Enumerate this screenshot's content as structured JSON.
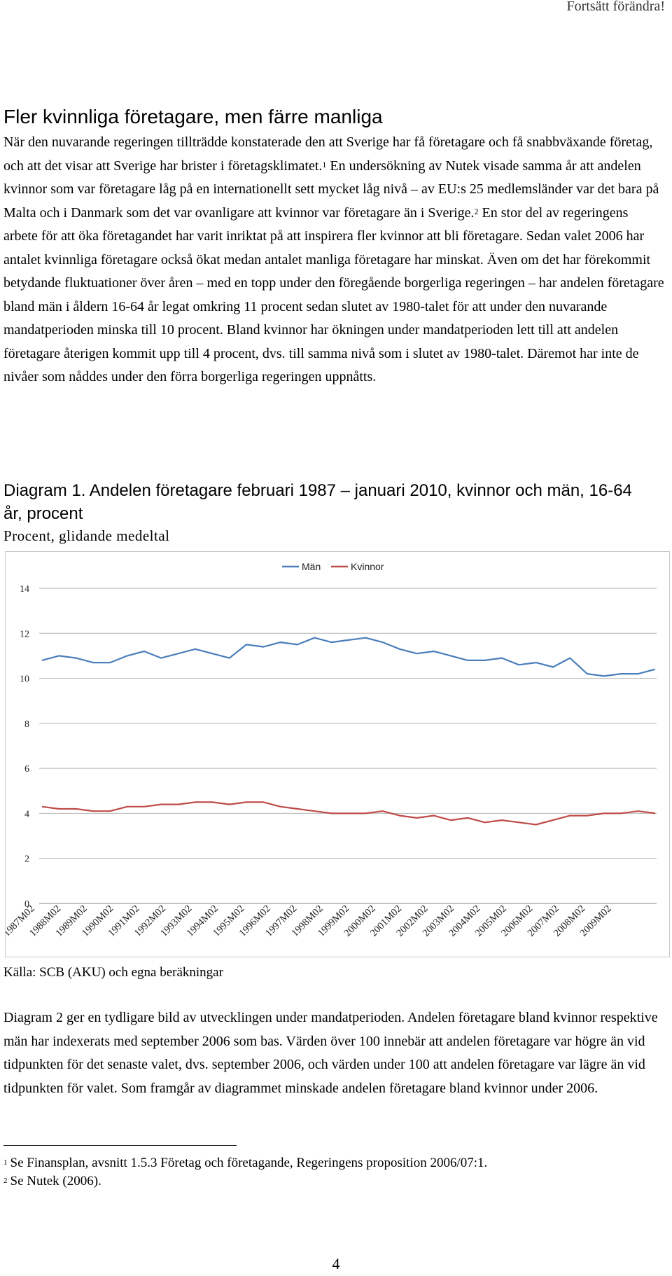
{
  "header": {
    "running_title": "Fortsätt förändra!"
  },
  "section": {
    "title": "Fler kvinnliga företagare, men färre manliga",
    "paragraph1": {
      "a": "När den nuvarande regeringen tillträdde konstaterade den att Sverige har få företagare och få snabbväxande företag, och att det visar att Sverige har brister i företagsklimatet.",
      "ref1": "1",
      "b": " En undersökning av Nutek visade samma år att andelen kvinnor som var företagare låg på en internationellt sett mycket låg nivå – av EU:s 25 medlemsländer var det bara på Malta och i Danmark som det var ovanligare att kvinnor var företagare än i Sverige.",
      "ref2": "2",
      "c": " En stor del av regeringens arbete för att öka företagandet har varit inriktat på att inspirera fler kvinnor att bli företagare. Sedan valet 2006 har antalet kvinnliga företagare också ökat medan antalet manliga företagare har minskat. Även om det har förekommit betydande fluktuationer över åren – med en topp under den föregående borgerliga regeringen – har andelen företagare bland män i åldern 16-64 år legat omkring 11 procent sedan slutet av 1980-talet för att under den nuvarande mandatperioden minska till 10 procent. Bland kvinnor har ökningen under mandatperioden lett till att andelen företagare återigen kommit upp till 4 procent, dvs. till samma nivå som i slutet av 1980-talet. Däremot har inte de nivåer som nåddes under den förra borgerliga regeringen uppnåtts."
    },
    "paragraph2": "Diagram 2 ger en tydligare bild av utvecklingen under mandatperioden. Andelen företagare bland kvinnor respektive män har indexerats med september 2006 som bas. Värden över 100 innebär att andelen företagare var högre än vid tidpunkten för det senaste valet, dvs. september 2006, och värden under 100 att andelen företagare var lägre än vid tidpunkten för valet. Som framgår av diagrammet minskade andelen företagare bland kvinnor under 2006."
  },
  "diagram": {
    "label": "Diagram 1.",
    "title": " Andelen företagare februari 1987 – januari 2010, kvinnor och män, 16-64 år, procent",
    "subtitle": "Procent, glidande medeltal",
    "source": "Källa: SCB (AKU) och egna beräkningar"
  },
  "chart_data": {
    "type": "line",
    "title": "Andelen företagare februari 1987 – januari 2010, kvinnor och män, 16-64 år, procent",
    "ylabel": "Procent, glidande medeltal",
    "ylim": [
      0,
      14
    ],
    "yticks": [
      "0",
      "2",
      "4",
      "6",
      "8",
      "10",
      "12",
      "14"
    ],
    "x_tick_labels": [
      "1987M02",
      "1988M02",
      "1989M02",
      "1990M02",
      "1991M02",
      "1992M02",
      "1993M02",
      "1994M02",
      "1995M02",
      "1996M02",
      "1997M02",
      "1998M02",
      "1999M02",
      "2000M02",
      "2001M02",
      "2002M02",
      "2003M02",
      "2004M02",
      "2005M02",
      "2006M02",
      "2007M02",
      "2008M02",
      "2009M02"
    ],
    "legend_position": "top-center",
    "series": [
      {
        "name": "Män",
        "color": "#4a7ebb",
        "values": [
          10.8,
          11.0,
          10.9,
          10.7,
          10.7,
          11.0,
          11.2,
          10.9,
          11.1,
          11.3,
          11.1,
          10.9,
          11.5,
          11.4,
          11.6,
          11.5,
          11.8,
          11.6,
          11.7,
          11.8,
          11.6,
          11.3,
          11.1,
          11.2,
          11.0,
          10.8,
          10.8,
          10.9,
          10.6,
          10.7,
          10.5,
          10.9,
          10.2,
          10.1,
          10.2,
          10.2,
          10.4
        ]
      },
      {
        "name": "Kvinnor",
        "color": "#be4b48",
        "values": [
          4.3,
          4.2,
          4.2,
          4.1,
          4.1,
          4.3,
          4.3,
          4.4,
          4.4,
          4.5,
          4.5,
          4.4,
          4.5,
          4.5,
          4.3,
          4.2,
          4.1,
          4.0,
          4.0,
          4.0,
          4.1,
          3.9,
          3.8,
          3.9,
          3.7,
          3.8,
          3.6,
          3.7,
          3.6,
          3.5,
          3.7,
          3.9,
          3.9,
          4.0,
          4.0,
          4.1,
          4.0
        ]
      }
    ]
  },
  "footnotes": [
    {
      "num": "1",
      "text": "Se Finansplan, avsnitt 1.5.3 Företag och företagande, Regeringens proposition 2006/07:1."
    },
    {
      "num": "2",
      "text": "Se Nutek (2006)."
    }
  ],
  "page_number": "4"
}
